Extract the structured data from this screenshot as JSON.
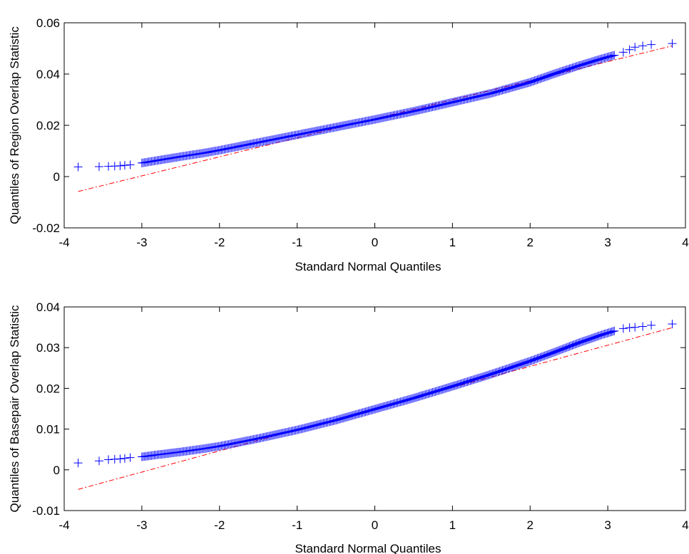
{
  "chart_data": [
    {
      "type": "scatter",
      "title": "",
      "xlabel": "Standard Normal Quantiles",
      "ylabel": "Quantiles of Region Overlap Statistic",
      "xlim": [
        -4,
        4
      ],
      "ylim": [
        -0.02,
        0.06
      ],
      "x_ticks": [
        -4,
        -3,
        -2,
        -1,
        0,
        1,
        2,
        3,
        4
      ],
      "y_ticks": [
        -0.02,
        0,
        0.02,
        0.04,
        0.06
      ],
      "x_tick_labels": [
        "-4",
        "-3",
        "-2",
        "-1",
        "0",
        "1",
        "2",
        "3",
        "4"
      ],
      "y_tick_labels": [
        "-0.02",
        "0",
        "0.02",
        "0.04",
        "0.06"
      ],
      "grid": false,
      "series": [
        {
          "kind": "points",
          "marker": "+",
          "color": "#0000ff",
          "x": [
            -3.82,
            -3.55,
            -3.43,
            -3.35,
            -3.28,
            -3.22,
            -3.15,
            -3.0,
            -2.8,
            -2.5,
            -2.2,
            -2.0,
            -1.5,
            -1.0,
            -0.5,
            0.0,
            0.5,
            1.0,
            1.5,
            2.0,
            2.3,
            2.6,
            2.9,
            3.1,
            3.2,
            3.28,
            3.35,
            3.45,
            3.56,
            3.83
          ],
          "y": [
            0.0038,
            0.0039,
            0.004,
            0.0041,
            0.0042,
            0.0044,
            0.0046,
            0.0053,
            0.0063,
            0.0078,
            0.0092,
            0.0103,
            0.0133,
            0.0163,
            0.0193,
            0.0223,
            0.0255,
            0.029,
            0.0325,
            0.0368,
            0.04,
            0.043,
            0.0458,
            0.0475,
            0.0485,
            0.0495,
            0.0505,
            0.051,
            0.0515,
            0.0519
          ]
        },
        {
          "kind": "reference-line",
          "style": "dash-dot",
          "color": "#ff0000",
          "x": [
            -3.82,
            3.83
          ],
          "y": [
            -0.0058,
            0.051
          ]
        }
      ]
    },
    {
      "type": "scatter",
      "title": "",
      "xlabel": "Standard Normal Quantiles",
      "ylabel": "Quantiles of Basepair Overlap Statistic",
      "xlim": [
        -4,
        4
      ],
      "ylim": [
        -0.01,
        0.04
      ],
      "x_ticks": [
        -4,
        -3,
        -2,
        -1,
        0,
        1,
        2,
        3,
        4
      ],
      "y_ticks": [
        -0.01,
        0,
        0.01,
        0.02,
        0.03,
        0.04
      ],
      "x_tick_labels": [
        "-4",
        "-3",
        "-2",
        "-1",
        "0",
        "1",
        "2",
        "3",
        "4"
      ],
      "y_tick_labels": [
        "-0.01",
        "0",
        "0.01",
        "0.02",
        "0.03",
        "0.04"
      ],
      "grid": false,
      "series": [
        {
          "kind": "points",
          "marker": "+",
          "color": "#0000ff",
          "x": [
            -3.82,
            -3.55,
            -3.43,
            -3.35,
            -3.28,
            -3.22,
            -3.15,
            -3.0,
            -2.8,
            -2.5,
            -2.2,
            -2.0,
            -1.5,
            -1.0,
            -0.5,
            0.0,
            0.5,
            1.0,
            1.5,
            2.0,
            2.3,
            2.6,
            2.9,
            3.1,
            3.2,
            3.28,
            3.35,
            3.45,
            3.56,
            3.83
          ],
          "y": [
            0.0017,
            0.0022,
            0.0025,
            0.0026,
            0.0027,
            0.0028,
            0.003,
            0.0032,
            0.0037,
            0.0044,
            0.0052,
            0.0058,
            0.0077,
            0.0098,
            0.0122,
            0.0149,
            0.0176,
            0.0205,
            0.0235,
            0.0267,
            0.0288,
            0.031,
            0.033,
            0.0342,
            0.0347,
            0.0349,
            0.035,
            0.0352,
            0.0355,
            0.0358
          ]
        },
        {
          "kind": "reference-line",
          "style": "dash-dot",
          "color": "#ff0000",
          "x": [
            -3.82,
            3.83
          ],
          "y": [
            -0.0048,
            0.0349
          ]
        }
      ]
    }
  ]
}
